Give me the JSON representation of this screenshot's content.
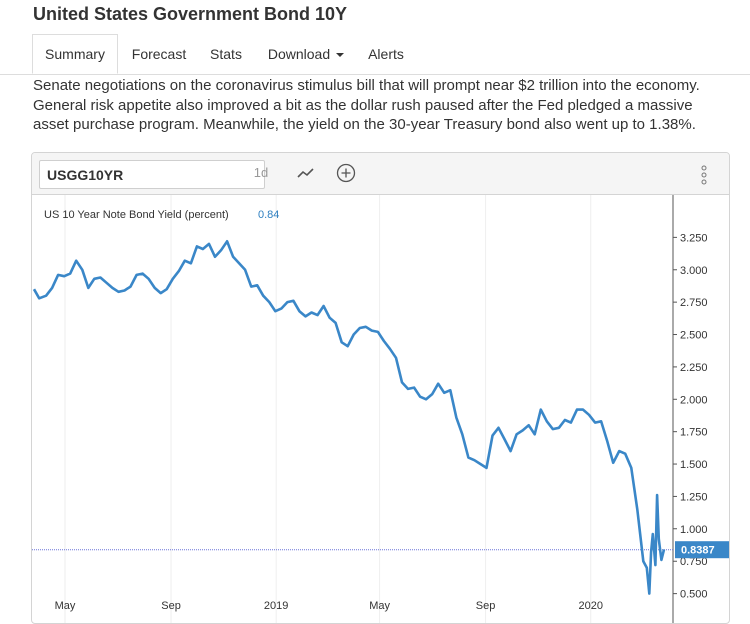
{
  "page": {
    "title": "United States Government Bond 10Y"
  },
  "tabs": [
    {
      "label": "Summary",
      "active": true
    },
    {
      "label": "Forecast"
    },
    {
      "label": "Stats"
    },
    {
      "label": "Download"
    },
    {
      "label": "Alerts"
    }
  ],
  "article": {
    "lines": [
      "Senate negotiations on the coronavirus stimulus bill that will prompt near $2 trillion into the economy.",
      "General risk appetite also improved a bit as the dollar rush paused after the Fed pledged a massive",
      "asset purchase program. Meanwhile, the yield on the 30-year Treasury bond also went up to 1.38%."
    ]
  },
  "toolbar": {
    "symbol_value": "USGG10YR",
    "interval_label": "1d",
    "line_chart_icon": "line-chart-icon",
    "add_icon": "plus-circle-icon",
    "menu_icon": "vertical-dots-icon"
  },
  "colors": {
    "series": "#3a87c8",
    "price_tag": "#3a87c8",
    "last_line": "#6a74d8",
    "accent_text": "#2e7fc0"
  },
  "chart_data": {
    "type": "line",
    "title": "",
    "legend": {
      "label": "US 10 Year Note Bond Yield (percent)",
      "value": "0.84"
    },
    "last_value_label": "0.8387",
    "last_value": 0.8387,
    "x_tick_labels": [
      "May",
      "Sep",
      "2019",
      "May",
      "Sep",
      "2020"
    ],
    "y_tick_labels": [
      "3.250",
      "3.000",
      "2.750",
      "2.500",
      "2.250",
      "2.000",
      "1.750",
      "1.500",
      "1.250",
      "1.000",
      "0.750",
      "0.500"
    ],
    "ylim": [
      0.35,
      3.5
    ],
    "xlim": [
      "2018-03-26",
      "2020-03-26"
    ],
    "grid": false,
    "series": [
      {
        "name": "US 10 Year Note Bond Yield (percent)",
        "points": [
          [
            "2018-03-26",
            2.85
          ],
          [
            "2018-04-01",
            2.78
          ],
          [
            "2018-04-09",
            2.8
          ],
          [
            "2018-04-16",
            2.86
          ],
          [
            "2018-04-23",
            2.96
          ],
          [
            "2018-04-30",
            2.95
          ],
          [
            "2018-05-07",
            2.97
          ],
          [
            "2018-05-14",
            3.07
          ],
          [
            "2018-05-21",
            3.0
          ],
          [
            "2018-05-28",
            2.86
          ],
          [
            "2018-06-04",
            2.93
          ],
          [
            "2018-06-11",
            2.94
          ],
          [
            "2018-06-18",
            2.9
          ],
          [
            "2018-06-25",
            2.86
          ],
          [
            "2018-07-02",
            2.83
          ],
          [
            "2018-07-09",
            2.84
          ],
          [
            "2018-07-16",
            2.87
          ],
          [
            "2018-07-23",
            2.96
          ],
          [
            "2018-07-30",
            2.97
          ],
          [
            "2018-08-06",
            2.93
          ],
          [
            "2018-08-13",
            2.86
          ],
          [
            "2018-08-20",
            2.82
          ],
          [
            "2018-08-27",
            2.85
          ],
          [
            "2018-09-03",
            2.93
          ],
          [
            "2018-09-10",
            2.99
          ],
          [
            "2018-09-17",
            3.07
          ],
          [
            "2018-09-24",
            3.05
          ],
          [
            "2018-10-01",
            3.18
          ],
          [
            "2018-10-08",
            3.16
          ],
          [
            "2018-10-15",
            3.2
          ],
          [
            "2018-10-22",
            3.1
          ],
          [
            "2018-10-29",
            3.15
          ],
          [
            "2018-11-05",
            3.22
          ],
          [
            "2018-11-12",
            3.1
          ],
          [
            "2018-11-19",
            3.05
          ],
          [
            "2018-11-26",
            3.0
          ],
          [
            "2018-12-03",
            2.87
          ],
          [
            "2018-12-10",
            2.88
          ],
          [
            "2018-12-17",
            2.8
          ],
          [
            "2018-12-24",
            2.75
          ],
          [
            "2018-12-31",
            2.68
          ],
          [
            "2019-01-07",
            2.7
          ],
          [
            "2019-01-14",
            2.75
          ],
          [
            "2019-01-21",
            2.76
          ],
          [
            "2019-01-28",
            2.68
          ],
          [
            "2019-02-04",
            2.64
          ],
          [
            "2019-02-11",
            2.67
          ],
          [
            "2019-02-18",
            2.65
          ],
          [
            "2019-02-25",
            2.72
          ],
          [
            "2019-03-04",
            2.63
          ],
          [
            "2019-03-11",
            2.59
          ],
          [
            "2019-03-18",
            2.44
          ],
          [
            "2019-03-25",
            2.41
          ],
          [
            "2019-04-01",
            2.5
          ],
          [
            "2019-04-08",
            2.55
          ],
          [
            "2019-04-15",
            2.56
          ],
          [
            "2019-04-22",
            2.53
          ],
          [
            "2019-04-29",
            2.52
          ],
          [
            "2019-05-06",
            2.45
          ],
          [
            "2019-05-13",
            2.39
          ],
          [
            "2019-05-20",
            2.32
          ],
          [
            "2019-05-27",
            2.13
          ],
          [
            "2019-06-03",
            2.08
          ],
          [
            "2019-06-10",
            2.09
          ],
          [
            "2019-06-17",
            2.02
          ],
          [
            "2019-06-24",
            2.0
          ],
          [
            "2019-07-01",
            2.04
          ],
          [
            "2019-07-08",
            2.12
          ],
          [
            "2019-07-15",
            2.05
          ],
          [
            "2019-07-22",
            2.07
          ],
          [
            "2019-07-29",
            1.86
          ],
          [
            "2019-08-05",
            1.73
          ],
          [
            "2019-08-12",
            1.55
          ],
          [
            "2019-08-19",
            1.53
          ],
          [
            "2019-08-26",
            1.5
          ],
          [
            "2019-09-02",
            1.47
          ],
          [
            "2019-09-09",
            1.72
          ],
          [
            "2019-09-16",
            1.78
          ],
          [
            "2019-09-23",
            1.69
          ],
          [
            "2019-09-30",
            1.6
          ],
          [
            "2019-10-07",
            1.73
          ],
          [
            "2019-10-14",
            1.76
          ],
          [
            "2019-10-21",
            1.8
          ],
          [
            "2019-10-28",
            1.73
          ],
          [
            "2019-11-04",
            1.92
          ],
          [
            "2019-11-11",
            1.83
          ],
          [
            "2019-11-18",
            1.77
          ],
          [
            "2019-11-25",
            1.78
          ],
          [
            "2019-12-02",
            1.84
          ],
          [
            "2019-12-09",
            1.82
          ],
          [
            "2019-12-16",
            1.92
          ],
          [
            "2019-12-23",
            1.92
          ],
          [
            "2019-12-30",
            1.88
          ],
          [
            "2020-01-06",
            1.82
          ],
          [
            "2020-01-13",
            1.83
          ],
          [
            "2020-01-20",
            1.68
          ],
          [
            "2020-01-27",
            1.51
          ],
          [
            "2020-02-03",
            1.6
          ],
          [
            "2020-02-10",
            1.58
          ],
          [
            "2020-02-17",
            1.47
          ],
          [
            "2020-02-24",
            1.15
          ],
          [
            "2020-03-02",
            0.75
          ],
          [
            "2020-03-06",
            0.7
          ],
          [
            "2020-03-09",
            0.5
          ],
          [
            "2020-03-11",
            0.82
          ],
          [
            "2020-03-13",
            0.96
          ],
          [
            "2020-03-16",
            0.72
          ],
          [
            "2020-03-18",
            1.26
          ],
          [
            "2020-03-20",
            0.92
          ],
          [
            "2020-03-23",
            0.76
          ],
          [
            "2020-03-26",
            0.84
          ]
        ]
      }
    ]
  }
}
